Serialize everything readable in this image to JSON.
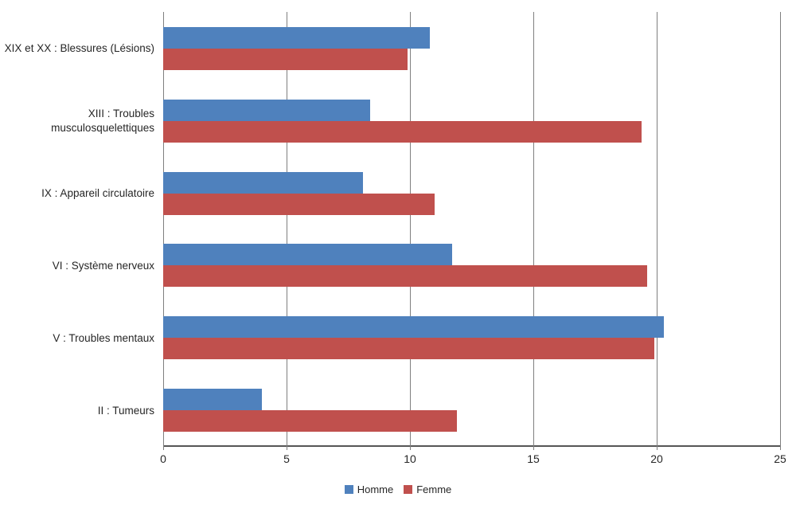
{
  "chart_data": {
    "type": "bar",
    "orientation": "horizontal",
    "title": "",
    "xlabel": "",
    "ylabel": "",
    "categories": [
      "XIX et XX : Blessures (Lésions)",
      "XIII : Troubles musculosquelettiques",
      "IX : Appareil circulatoire",
      "VI : Système nerveux",
      "V : Troubles mentaux",
      "II : Tumeurs"
    ],
    "series": [
      {
        "name": "Homme",
        "color": "#4F81BD",
        "values": [
          10.8,
          8.4,
          8.1,
          11.7,
          20.3,
          4.0
        ]
      },
      {
        "name": "Femme",
        "color": "#C0504D",
        "values": [
          9.9,
          19.4,
          11.0,
          19.6,
          19.9,
          11.9
        ]
      }
    ],
    "xlim": [
      0,
      25
    ],
    "xticks": [
      0,
      5,
      10,
      15,
      20,
      25
    ],
    "grid": "vertical-gridlines-on",
    "legend_position": "bottom-center"
  },
  "colors": {
    "homme": "#4F81BD",
    "femme": "#C0504D",
    "gridline": "#7F7F7F",
    "axis_line": "#565656",
    "text": "#262626",
    "background": "#FFFFFF"
  }
}
